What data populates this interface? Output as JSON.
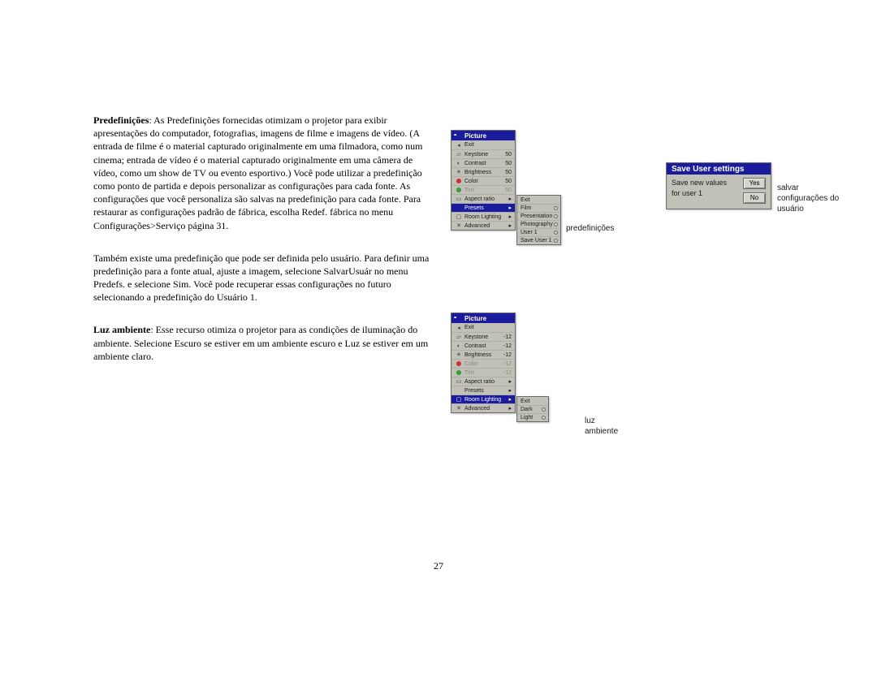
{
  "page_number": "27",
  "text": {
    "p1_bold": "Predefinições",
    "p1": ": As Predefinições fornecidas otimizam o projetor para exibir apresentações do computador, fotografias, imagens de filme e imagens de vídeo. (A entrada de filme é o material capturado originalmente em uma filmadora, como num cinema; entrada de vídeo é o material capturado originalmente em uma câmera de vídeo, como um show de TV ou evento esportivo.) Você pode utilizar a predefinição como ponto de partida e depois personalizar as configurações para cada fonte. As configurações que você personaliza são salvas na predefinição para cada fonte. Para restaurar as configurações padrão de fábrica, escolha Redef. fábrica no menu Configurações>Serviço página 31.",
    "p2": "Também existe uma predefinição que pode ser definida pelo usuário. Para definir uma predefinição para a fonte atual, ajuste a imagem, selecione SalvarUsuár no menu Predefs. e selecione Sim. Você pode recuperar essas configurações no futuro selecionando a predefinição do Usuário 1.",
    "p3_bold": "Luz ambiente",
    "p3": ": Esse recurso otimiza o projetor para as condições de iluminação do ambiente. Selecione Escuro se estiver em um ambiente escuro e Luz se estiver em um ambiente claro."
  },
  "menu1": {
    "title": "Picture",
    "rows": [
      {
        "icon": "◂",
        "label": "Exit",
        "val": "",
        "arrow": ""
      },
      {
        "icon": "▱",
        "label": "Keystone",
        "val": "50",
        "arrow": ""
      },
      {
        "icon": "◐",
        "label": "Contrast",
        "val": "50",
        "arrow": ""
      },
      {
        "icon": "☼",
        "label": "Brightness",
        "val": "50",
        "arrow": ""
      },
      {
        "icon": "●r",
        "label": "Color",
        "val": "50",
        "arrow": ""
      },
      {
        "icon": "●g",
        "label": "Tint",
        "val": "50",
        "arrow": "",
        "dim": true
      },
      {
        "icon": "□",
        "label": "Aspect ratio",
        "val": "",
        "arrow": "▸"
      },
      {
        "icon": "",
        "label": "Presets",
        "val": "",
        "arrow": "▸",
        "sel": true
      },
      {
        "icon": "▢",
        "label": "Room Lighting",
        "val": "",
        "arrow": "▸"
      },
      {
        "icon": "✕",
        "label": "Advanced",
        "val": "",
        "arrow": "▸"
      }
    ],
    "submenu": [
      "Exit",
      "Film",
      "Presentation",
      "Photography",
      "User 1",
      "Save User 1"
    ],
    "caption": "predefinições"
  },
  "dialog": {
    "title": "Save User settings",
    "line1": "Save new values",
    "line2": "for user 1",
    "yes": "Yes",
    "no": "No",
    "caption": "salvar configurações do usuário"
  },
  "menu2": {
    "title": "Picture",
    "rows": [
      {
        "icon": "◂",
        "label": "Exit",
        "val": "",
        "arrow": ""
      },
      {
        "icon": "▱",
        "label": "Keystone",
        "val": "-12",
        "arrow": ""
      },
      {
        "icon": "◐",
        "label": "Contrast",
        "val": "-12",
        "arrow": ""
      },
      {
        "icon": "☼",
        "label": "Brightness",
        "val": "-12",
        "arrow": ""
      },
      {
        "icon": "●r",
        "label": "Color",
        "val": "-12",
        "arrow": "",
        "dim": true
      },
      {
        "icon": "●g",
        "label": "Tint",
        "val": "-12",
        "arrow": "",
        "dim": true
      },
      {
        "icon": "□",
        "label": "Aspect ratio",
        "val": "",
        "arrow": "▸"
      },
      {
        "icon": "",
        "label": "Presets",
        "val": "",
        "arrow": "▸"
      },
      {
        "icon": "▢",
        "label": "Room Lighting",
        "val": "",
        "arrow": "▸",
        "sel": true
      },
      {
        "icon": "✕",
        "label": "Advanced",
        "val": "",
        "arrow": "▸"
      }
    ],
    "submenu": [
      "Exit",
      "Dark",
      "Light"
    ],
    "caption": "luz ambiente"
  },
  "colors": {
    "header_bg": "#1b1b9e",
    "panel_bg": "#c1c1b8",
    "icon_red": "#d03030",
    "icon_green": "#30a030"
  }
}
